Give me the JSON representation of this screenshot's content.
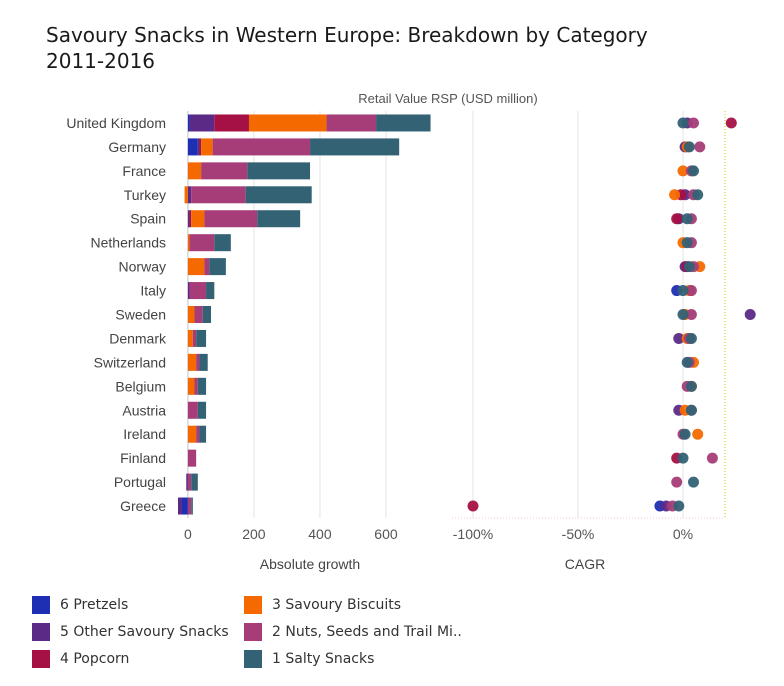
{
  "title": {
    "line1": "Savoury Snacks in Western Europe: Breakdown by Category",
    "line2": "2011-2016"
  },
  "chart_data": [
    {
      "type": "bar",
      "stacked": true,
      "orientation": "horizontal",
      "title": "Retail Value RSP (USD million)",
      "xlabel": "Absolute growth",
      "xlim": [
        -30,
        800
      ],
      "xticks": [
        0,
        200,
        400,
        600
      ],
      "grid": true,
      "categories": [
        "United Kingdom",
        "Germany",
        "France",
        "Turkey",
        "Spain",
        "Netherlands",
        "Norway",
        "Italy",
        "Sweden",
        "Denmark",
        "Switzerland",
        "Belgium",
        "Austria",
        "Ireland",
        "Finland",
        "Portugal",
        "Greece"
      ],
      "series": [
        {
          "name": "6 Pretzels",
          "color": "#1f2fb3",
          "values": [
            5,
            30,
            0,
            0,
            0,
            0,
            0,
            0,
            0,
            0,
            0,
            0,
            0,
            0,
            0,
            0,
            -18
          ]
        },
        {
          "name": "5 Other Savoury Snacks",
          "color": "#5b2a86",
          "values": [
            75,
            5,
            0,
            10,
            5,
            0,
            0,
            5,
            0,
            0,
            0,
            0,
            0,
            0,
            0,
            -5,
            -12
          ]
        },
        {
          "name": "4 Popcorn",
          "color": "#a51144",
          "values": [
            105,
            5,
            0,
            0,
            5,
            0,
            0,
            0,
            0,
            0,
            0,
            0,
            0,
            0,
            0,
            0,
            0
          ]
        },
        {
          "name": "3 Savoury Biscuits",
          "color": "#f56a00",
          "values": [
            235,
            35,
            40,
            -10,
            40,
            5,
            50,
            0,
            20,
            15,
            25,
            20,
            0,
            25,
            0,
            0,
            0
          ]
        },
        {
          "name": "2 Nuts, Seeds and Trail Mi..",
          "color": "#a63d78",
          "values": [
            150,
            295,
            140,
            165,
            160,
            75,
            15,
            50,
            25,
            10,
            10,
            10,
            30,
            10,
            25,
            10,
            10
          ]
        },
        {
          "name": "1 Salty Snacks",
          "color": "#336275",
          "values": [
            165,
            270,
            190,
            200,
            130,
            50,
            50,
            25,
            25,
            30,
            25,
            25,
            25,
            20,
            0,
            20,
            5
          ]
        }
      ]
    },
    {
      "type": "scatter",
      "title": "",
      "xlabel": "CAGR",
      "xlim": [
        -110,
        20
      ],
      "xticks": [
        -100,
        -50,
        0
      ],
      "xticklabels": [
        "-100%",
        "-50%",
        "0%"
      ],
      "grid": true,
      "categories": [
        "United Kingdom",
        "Germany",
        "France",
        "Turkey",
        "Spain",
        "Netherlands",
        "Norway",
        "Italy",
        "Sweden",
        "Denmark",
        "Switzerland",
        "Belgium",
        "Austria",
        "Ireland",
        "Finland",
        "Portugal",
        "Greece"
      ],
      "series": [
        {
          "name": "6 Pretzels",
          "values": [
            null,
            null,
            null,
            null,
            null,
            null,
            null,
            -3,
            null,
            null,
            null,
            null,
            null,
            null,
            null,
            null,
            -11
          ]
        },
        {
          "name": "5 Other Savoury Snacks",
          "values": [
            2,
            1,
            null,
            1,
            -2,
            null,
            1,
            null,
            32,
            -2,
            null,
            null,
            -2,
            null,
            null,
            null,
            -8
          ]
        },
        {
          "name": "4 Popcorn",
          "values": [
            23,
            null,
            null,
            -1,
            -3,
            null,
            2,
            null,
            null,
            null,
            null,
            null,
            null,
            null,
            -3,
            null,
            -100
          ]
        },
        {
          "name": "3 Savoury Biscuits",
          "values": [
            null,
            2,
            0,
            -4,
            null,
            0,
            8,
            3,
            1,
            2,
            5,
            4,
            1,
            7,
            null,
            null,
            null
          ]
        },
        {
          "name": "2 Nuts, Seeds and Trail Mi..",
          "values": [
            5,
            8,
            4,
            5,
            4,
            4,
            5,
            4,
            4,
            3,
            3,
            2,
            4,
            0,
            14,
            -3,
            -5
          ]
        },
        {
          "name": "1 Salty Snacks",
          "values": [
            0,
            3,
            5,
            7,
            2,
            2,
            3,
            0,
            0,
            4,
            2,
            4,
            4,
            1,
            0,
            5,
            -2
          ]
        }
      ]
    }
  ],
  "legend": [
    {
      "label": "6 Pretzels",
      "color": "#1f2fb3"
    },
    {
      "label": "3 Savoury Biscuits",
      "color": "#f56a00"
    },
    {
      "label": "5 Other Savoury Snacks",
      "color": "#5b2a86"
    },
    {
      "label": "2 Nuts, Seeds and Trail Mi..",
      "color": "#a63d78"
    },
    {
      "label": "4 Popcorn",
      "color": "#a51144"
    },
    {
      "label": "1 Salty Snacks",
      "color": "#336275"
    }
  ]
}
